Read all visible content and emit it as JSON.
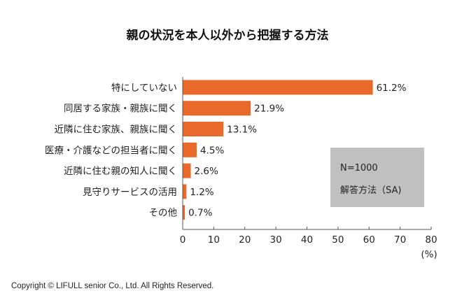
{
  "chart_data": {
    "type": "bar",
    "orientation": "horizontal",
    "title": "親の状況を本人以外から把握する方法",
    "categories": [
      "特にしていない",
      "同居する家族・親族に聞く",
      "近隣に住む家族、親族に聞く",
      "医療・介護などの担当者に聞く",
      "近隣に住む親の知人に聞く",
      "見守りサービスの活用",
      "その他"
    ],
    "values": [
      61.2,
      21.9,
      13.1,
      4.5,
      2.6,
      1.2,
      0.7
    ],
    "data_labels": [
      "61.2%",
      "21.9%",
      "13.1%",
      "4.5%",
      "2.6%",
      "1.2%",
      "0.7%"
    ],
    "xlim": [
      0,
      80
    ],
    "xticks": [
      "0",
      "10",
      "20",
      "30",
      "40",
      "50",
      "60",
      "70",
      "80"
    ],
    "xunit": "(%)",
    "grid": false,
    "bar_color": "#E8692A",
    "note": {
      "line1": "N=1000",
      "line2": "解答方法（SA)"
    }
  },
  "copyright": "Copyright © LIFULL senior Co., Ltd. All Rights Reserved."
}
